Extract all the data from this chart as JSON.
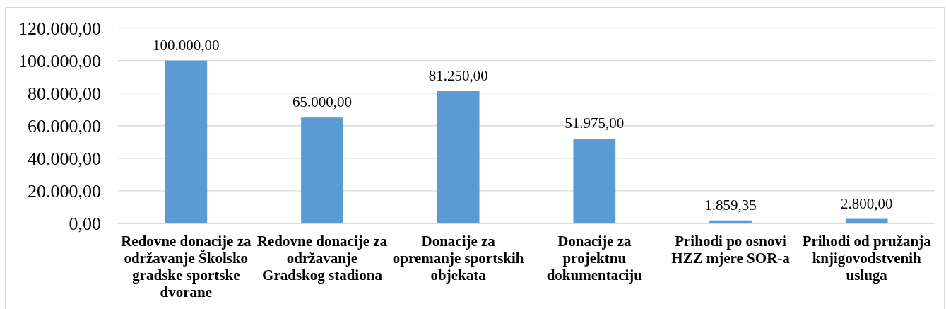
{
  "chart_data": {
    "type": "bar",
    "categories": [
      "Redovne donacije za održavanje Školsko gradske sportske dvorane",
      "Redovne donacije za održavanje Gradskog stadiona",
      "Donacije za opremanje sportskih objekata",
      "Donacije za projektnu dokumentaciju",
      "Prihodi po osnovi HZZ mjere SOR-a",
      "Prihodi od pružanja knjigovodstvenih usluga"
    ],
    "values": [
      100000,
      65000,
      81250,
      51975,
      1859.35,
      2800
    ],
    "value_labels": [
      "100.000,00",
      "65.000,00",
      "81.250,00",
      "51.975,00",
      "1.859,35",
      "2.800,00"
    ],
    "color": "#5b9bd5",
    "ylim": [
      0,
      120000
    ],
    "yticks": [
      {
        "value": 0,
        "label": "0,00"
      },
      {
        "value": 20000,
        "label": "20.000,00"
      },
      {
        "value": 40000,
        "label": "40.000,00"
      },
      {
        "value": 60000,
        "label": "60.000,00"
      },
      {
        "value": 80000,
        "label": "80.000,00"
      },
      {
        "value": 100000,
        "label": "100.000,00"
      },
      {
        "value": 120000,
        "label": "120.000,00"
      }
    ],
    "grid": "y"
  }
}
